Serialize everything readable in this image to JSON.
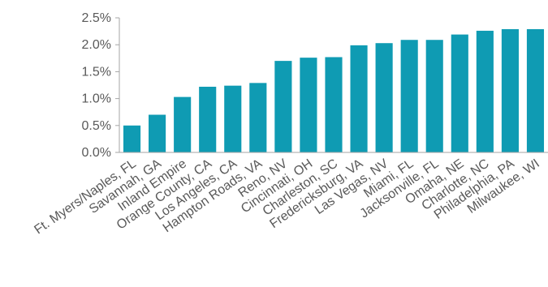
{
  "chart_data": {
    "type": "bar",
    "categories": [
      "Ft. Myers/Naples, FL",
      "Savannah, GA",
      "Inland Empire",
      "Orange County, CA",
      "Los Angeles, CA",
      "Hampton Roads, VA",
      "Reno, NV",
      "Cincinnati, OH",
      "Charleston, SC",
      "Fredericksburg, VA",
      "Las Vegas, NV",
      "Miami, FL",
      "Jacksonville, FL",
      "Omaha, NE",
      "Charlotte, NC",
      "Philadelphia, PA",
      "Milwaukee, WI"
    ],
    "values": [
      0.5,
      0.7,
      1.03,
      1.22,
      1.24,
      1.29,
      1.7,
      1.76,
      1.77,
      1.99,
      2.03,
      2.09,
      2.09,
      2.19,
      2.26,
      2.29,
      2.29
    ],
    "ylim": [
      0,
      2.5
    ],
    "yticks": [
      0,
      0.5,
      1.0,
      1.5,
      2.0,
      2.5
    ],
    "ytick_labels": [
      "0.0%",
      "0.5%",
      "1.0%",
      "1.5%",
      "2.0%",
      "2.5%"
    ],
    "bar_color": "#0f9bb3",
    "axis_color": "#a6a6a6",
    "grid": false,
    "legend": "none"
  }
}
